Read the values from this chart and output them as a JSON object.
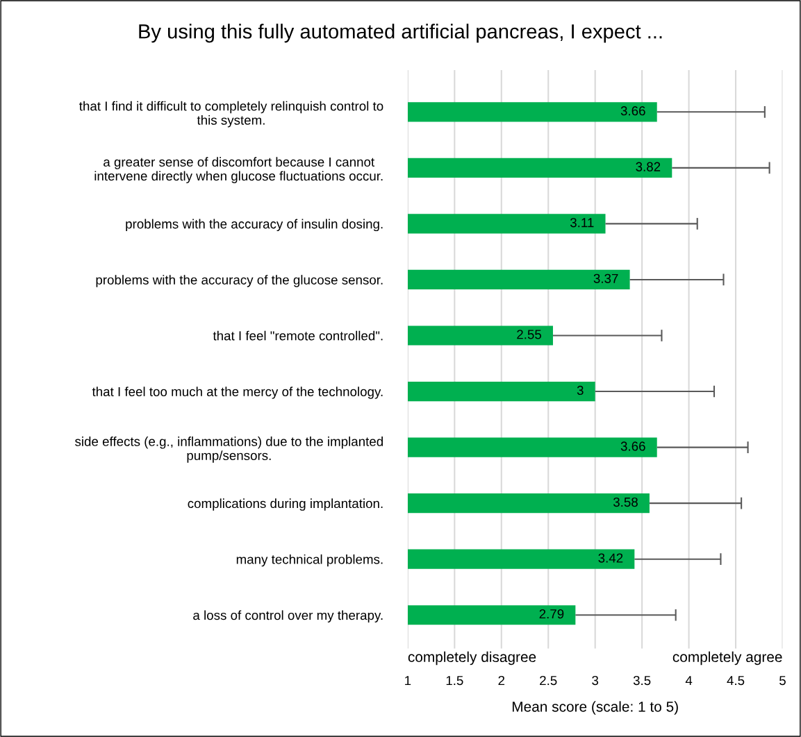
{
  "chart_data": {
    "type": "bar",
    "orientation": "horizontal",
    "title": "By using this fully automated artificial pancreas, I expect ...",
    "xlabel": "Mean score (scale: 1 to 5)",
    "categories": [
      "that I find it difficult to completely relinquish control to\nthis system.",
      "a greater sense of discomfort because I cannot\nintervene directly when glucose fluctuations occur.",
      "problems with the accuracy of insulin dosing.",
      "problems with the accuracy of the glucose sensor.",
      "that I feel \"remote controlled\".",
      "that I feel too much at the mercy of the technology.",
      "side effects (e.g., inflammations) due to the implanted\npump/sensors.",
      "complications during implantation.",
      "many technical problems.",
      "a loss of control over my therapy."
    ],
    "values": [
      3.66,
      3.82,
      3.11,
      3.37,
      2.55,
      3,
      3.66,
      3.58,
      3.42,
      2.79
    ],
    "errors": [
      [
        3.66,
        4.81
      ],
      [
        3.82,
        4.86
      ],
      [
        3.11,
        4.09
      ],
      [
        3.37,
        4.37
      ],
      [
        2.55,
        3.71
      ],
      [
        3,
        4.27
      ],
      [
        3.66,
        4.63
      ],
      [
        3.58,
        4.56
      ],
      [
        3.42,
        4.34
      ],
      [
        2.79,
        3.86
      ]
    ],
    "color": "#00b050",
    "data_labels": true,
    "grid": "x",
    "xlim": [
      1,
      5
    ],
    "xticks": [
      1,
      1.5,
      2,
      2.5,
      3,
      3.5,
      4,
      4.5,
      5
    ],
    "annotations": [
      "completely disagree",
      "completely agree"
    ]
  }
}
